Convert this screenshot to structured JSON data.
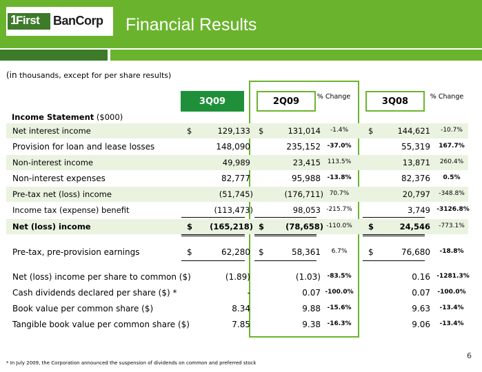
{
  "header": {
    "logo_one": "1",
    "logo_first": "First",
    "logo_bancorp": "BanCorp",
    "title": "Financial Results"
  },
  "subtitle_paren": "(in",
  "subtitle_rest": " thousands, except for per share results)",
  "columns": {
    "c1": "3Q09",
    "c2": "2Q09",
    "pct1": "% Change",
    "c3": "3Q08",
    "pct2": "% Change"
  },
  "section_label_bold": "Income Statement",
  "section_label_unit": " ($000)",
  "dollar_sign": "$",
  "rows": [
    {
      "label": "Net interest income",
      "v1": "129,133",
      "v2": "131,014",
      "p1": "-1.4%",
      "v3": "144,621",
      "p2": "-10.7%"
    },
    {
      "label": "Provision for loan and lease losses",
      "v1": "148,090",
      "v2": "235,152",
      "p1": "-37.0%",
      "v3": "55,319",
      "p2": "167.7%"
    },
    {
      "label": "Non-interest income",
      "v1": "49,989",
      "v2": "23,415",
      "p1": "113.5%",
      "v3": "13,871",
      "p2": "260.4%"
    },
    {
      "label": "Non-interest expenses",
      "v1": "82,777",
      "v2": "95,988",
      "p1": "-13.8%",
      "v3": "82,376",
      "p2": "0.5%"
    },
    {
      "label": "Pre-tax net (loss) income",
      "v1": "(51,745)",
      "v2": "(176,711)",
      "p1": "70.7%",
      "v3": "20,797",
      "p2": "-348.8%"
    },
    {
      "label": "Income tax (expense) benefit",
      "v1": "(113,473)",
      "v2": "98,053",
      "p1": "-215.7%",
      "v3": "3,749",
      "p2": "-3126.8%"
    },
    {
      "label": "Net (loss) income",
      "v1": "(165,218)",
      "v2": "(78,658)",
      "p1": "-110.0%",
      "v3": "24,546",
      "p2": "-773.1%"
    },
    {
      "label": "Pre-tax, pre-provision earnings",
      "v1": "62,280",
      "v2": "58,361",
      "p1": "6.7%",
      "v3": "76,680",
      "p2": "-18.8%"
    },
    {
      "label": "Net (loss) income per share to common ($)",
      "v1": "(1.89)",
      "v2": "(1.03)",
      "p1": "-83.5%",
      "v3": "0.16",
      "p2": "-1281.3%"
    },
    {
      "label": "Cash dividends declared per share ($) *",
      "v1": "-",
      "v2": "0.07",
      "p1": "-100.0%",
      "v3": "0.07",
      "p2": "-100.0%"
    },
    {
      "label": "Book value per common share ($)",
      "v1": "8.34",
      "v2": "9.88",
      "p1": "-15.6%",
      "v3": "9.63",
      "p2": "-13.4%"
    },
    {
      "label": "Tangible book value per common share ($)",
      "v1": "7.85",
      "v2": "9.38",
      "p1": "-16.3%",
      "v3": "9.06",
      "p2": "-13.4%"
    }
  ],
  "footnote": "* In July 2009, the Corporation announced the suspension of  dividends on common and preferred stock",
  "page_number": "6"
}
